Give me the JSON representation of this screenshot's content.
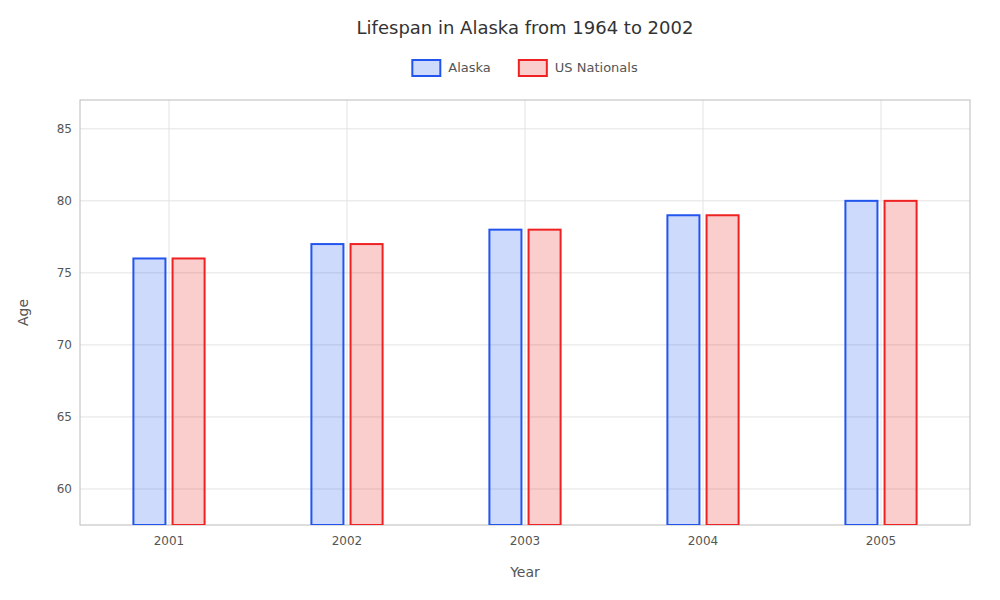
{
  "chart_data": {
    "type": "bar",
    "title": "Lifespan in Alaska from 1964 to 2002",
    "xlabel": "Year",
    "ylabel": "Age",
    "categories": [
      "2001",
      "2002",
      "2003",
      "2004",
      "2005"
    ],
    "series": [
      {
        "name": "Alaska",
        "color": "#2255ee",
        "values": [
          76,
          77,
          78,
          79,
          80
        ]
      },
      {
        "name": "US Nationals",
        "color": "#ee2222",
        "values": [
          76,
          77,
          78,
          79,
          80
        ]
      }
    ],
    "ylim": [
      57.5,
      87
    ],
    "yticks": [
      60,
      65,
      70,
      75,
      80,
      85
    ],
    "grid": true,
    "legend": "top"
  }
}
